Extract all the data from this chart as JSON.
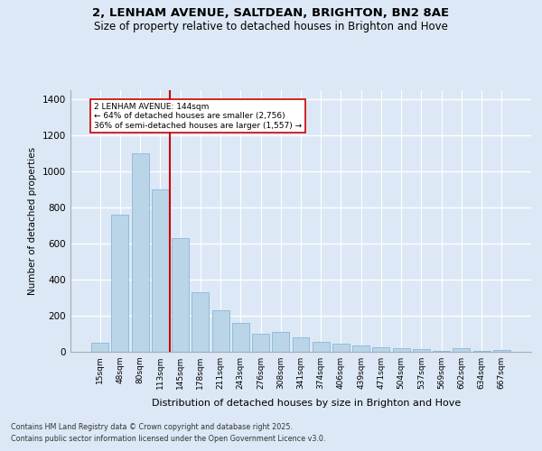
{
  "title1": "2, LENHAM AVENUE, SALTDEAN, BRIGHTON, BN2 8AE",
  "title2": "Size of property relative to detached houses in Brighton and Hove",
  "xlabel": "Distribution of detached houses by size in Brighton and Hove",
  "ylabel": "Number of detached properties",
  "categories": [
    "15sqm",
    "48sqm",
    "80sqm",
    "113sqm",
    "145sqm",
    "178sqm",
    "211sqm",
    "243sqm",
    "276sqm",
    "308sqm",
    "341sqm",
    "374sqm",
    "406sqm",
    "439sqm",
    "471sqm",
    "504sqm",
    "537sqm",
    "569sqm",
    "602sqm",
    "634sqm",
    "667sqm"
  ],
  "values": [
    50,
    760,
    1100,
    900,
    630,
    330,
    230,
    160,
    100,
    110,
    80,
    55,
    45,
    35,
    25,
    20,
    15,
    5,
    18,
    5,
    8
  ],
  "bar_color": "#bad4e8",
  "bar_edge_color": "#7ab0d4",
  "background_color": "#dce8f5",
  "vline_x_index": 3.5,
  "vline_color": "#cc0000",
  "annotation_text": "2 LENHAM AVENUE: 144sqm\n← 64% of detached houses are smaller (2,756)\n36% of semi-detached houses are larger (1,557) →",
  "annotation_box_color": "#cc0000",
  "ylim": [
    0,
    1450
  ],
  "yticks": [
    0,
    200,
    400,
    600,
    800,
    1000,
    1200,
    1400
  ],
  "footer1": "Contains HM Land Registry data © Crown copyright and database right 2025.",
  "footer2": "Contains public sector information licensed under the Open Government Licence v3.0."
}
